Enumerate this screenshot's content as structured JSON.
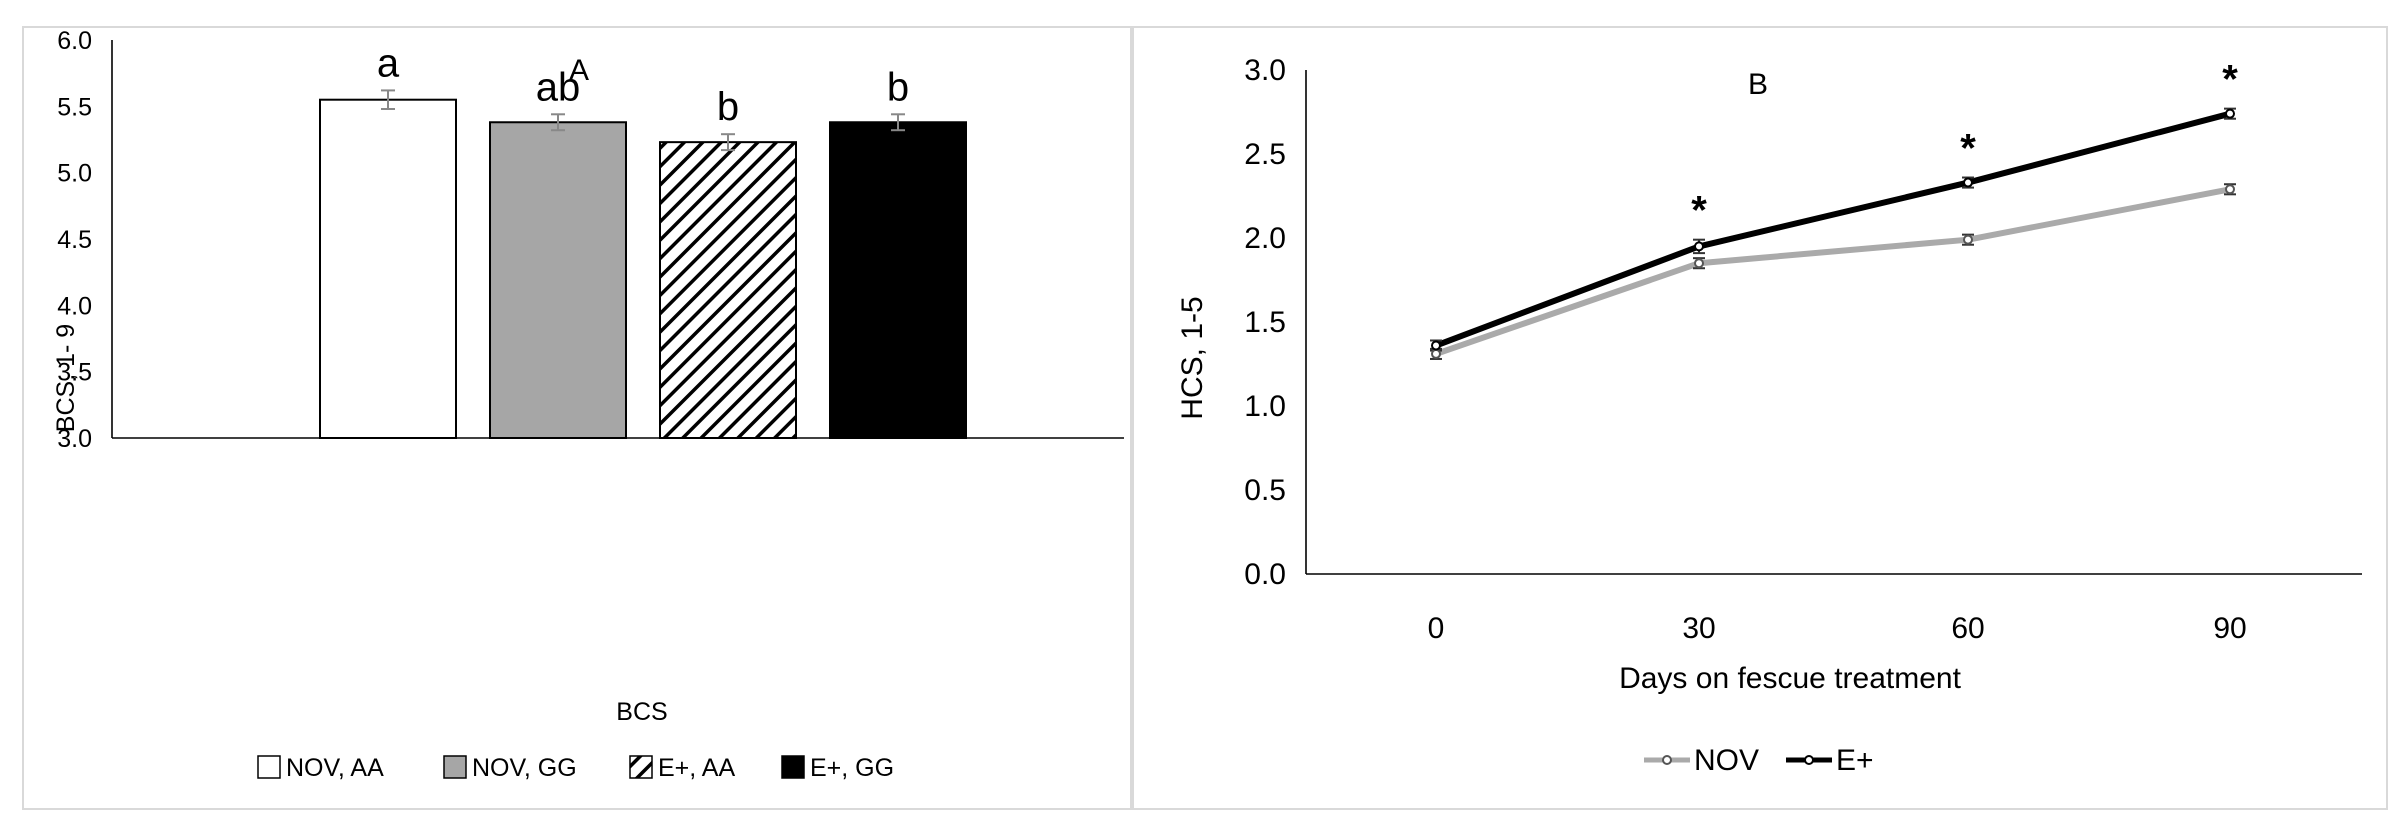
{
  "chart_data": [
    {
      "type": "bar",
      "title": "A",
      "xlabel": "BCS",
      "ylabel": "BCS, 1- 9",
      "ylim": [
        3.0,
        6.0
      ],
      "yticks": [
        "3.0",
        "3.5",
        "4.0",
        "4.5",
        "5.0",
        "5.5",
        "6.0"
      ],
      "grid": false,
      "legend_position": "bottom",
      "categories": [
        "BCS"
      ],
      "series": [
        {
          "name": "NOV, AA",
          "values": [
            5.55
          ],
          "error": [
            0.07
          ],
          "label": "a",
          "fill": "white"
        },
        {
          "name": "NOV, GG",
          "values": [
            5.38
          ],
          "error": [
            0.06
          ],
          "label": "ab",
          "fill": "gray"
        },
        {
          "name": "E+, AA",
          "values": [
            5.23
          ],
          "error": [
            0.06
          ],
          "label": "b",
          "fill": "hatched"
        },
        {
          "name": "E+, GG",
          "values": [
            5.38
          ],
          "error": [
            0.06
          ],
          "label": "b",
          "fill": "black"
        }
      ]
    },
    {
      "type": "line",
      "title": "B",
      "xlabel": "Days on fescue treatment",
      "ylabel": "HCS, 1-5",
      "ylim": [
        0.0,
        3.0
      ],
      "yticks": [
        "0.0",
        "0.5",
        "1.0",
        "1.5",
        "2.0",
        "2.5",
        "3.0"
      ],
      "x": [
        0,
        30,
        60,
        90
      ],
      "grid": false,
      "legend_position": "bottom",
      "series": [
        {
          "name": "NOV",
          "values": [
            1.31,
            1.85,
            1.99,
            2.29
          ],
          "error": [
            0.03,
            0.03,
            0.03,
            0.03
          ],
          "color": "#aaaaaa"
        },
        {
          "name": "E+",
          "values": [
            1.36,
            1.95,
            2.33,
            2.74
          ],
          "error": [
            0.03,
            0.04,
            0.03,
            0.03
          ],
          "color": "#000000"
        }
      ],
      "annotations": [
        {
          "x": 30,
          "text": "*"
        },
        {
          "x": 60,
          "text": "*"
        },
        {
          "x": 90,
          "text": "*"
        }
      ]
    }
  ]
}
